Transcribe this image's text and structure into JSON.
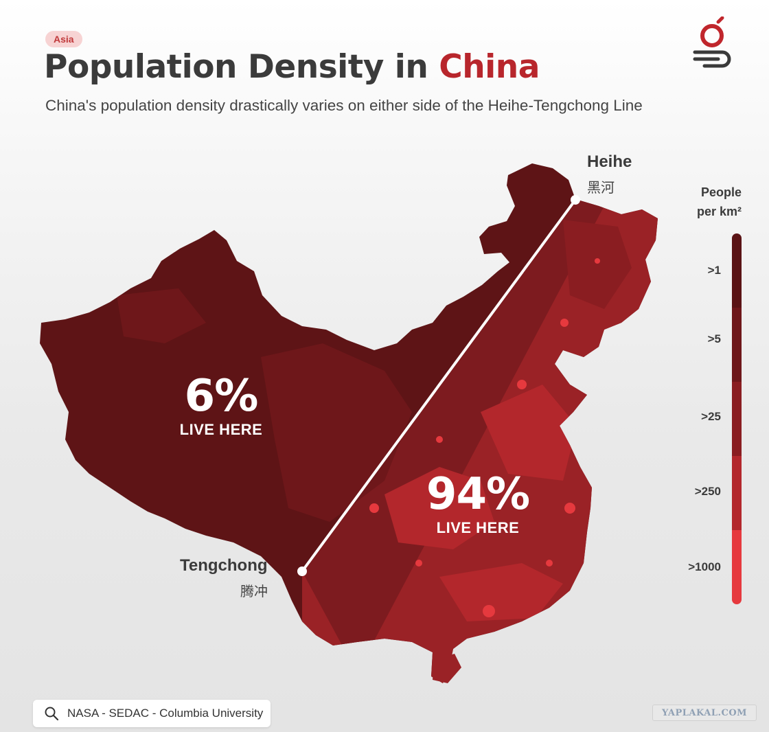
{
  "header": {
    "tag": "Asia",
    "title_main": "Population Density in",
    "title_highlight": "China",
    "subtitle": "China's population density drastically varies on either side of the Heihe-Tengchong Line"
  },
  "map": {
    "line": {
      "start": {
        "name_en": "Heihe",
        "name_zh": "黑河"
      },
      "end": {
        "name_en": "Tengchong",
        "name_zh": "腾冲"
      }
    },
    "west": {
      "percent": "6%",
      "label": "LIVE HERE"
    },
    "east": {
      "percent": "94%",
      "label": "LIVE HERE"
    },
    "colors": {
      "west_fill": "#5e1416",
      "east_fill": "#9a2226",
      "hotspot": "#e63a3e",
      "line": "#ffffff"
    }
  },
  "legend": {
    "title_line1": "People",
    "title_line2": "per km²",
    "items": [
      {
        "label": ">1",
        "color": "#5a1315"
      },
      {
        "label": ">5",
        "color": "#6e171a"
      },
      {
        "label": ">25",
        "color": "#8a1d21"
      },
      {
        "label": ">250",
        "color": "#b3272c"
      },
      {
        "label": ">1000",
        "color": "#e6393e"
      }
    ]
  },
  "source": {
    "icon": "search-icon",
    "text": "NASA - SEDAC - Columbia University"
  },
  "watermark": {
    "text": "YAPLAKAL.COM"
  }
}
